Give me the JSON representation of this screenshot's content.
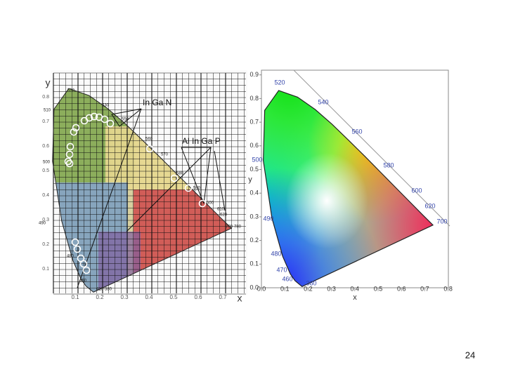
{
  "slide_number": "24",
  "left_figure": {
    "x_label": "x",
    "y_label": "y",
    "annotations": [
      "In Ga N",
      "Al In Ga P"
    ],
    "x_ticks": [
      "0.1",
      "0.2",
      "0.3",
      "0.4",
      "0.5",
      "0.6",
      "0.7"
    ],
    "y_ticks": [
      "0.1",
      "0.2",
      "0.3",
      "0.4",
      "0.5",
      "0.6",
      "0.7",
      "0.8"
    ],
    "wavelengths": [
      "520",
      "510",
      "530",
      "550",
      "560",
      "570",
      "580",
      "590",
      "600",
      "610",
      "620",
      "700-780",
      "500",
      "490",
      "480",
      "450",
      "410-380"
    ]
  },
  "right_figure": {
    "x_label": "x",
    "y_label": "y",
    "x_ticks": [
      "0.0",
      "0.1",
      "0.2",
      "0.3",
      "0.4",
      "0.5",
      "0.6",
      "0.7",
      "0.8"
    ],
    "y_ticks": [
      "0.0",
      "0.1",
      "0.2",
      "0.3",
      "0.4",
      "0.5",
      "0.6",
      "0.7",
      "0.8",
      "0.9"
    ],
    "wavelengths": [
      "520",
      "540",
      "560",
      "580",
      "600",
      "620",
      "700",
      "500",
      "490",
      "480",
      "470",
      "460",
      "380"
    ]
  }
}
